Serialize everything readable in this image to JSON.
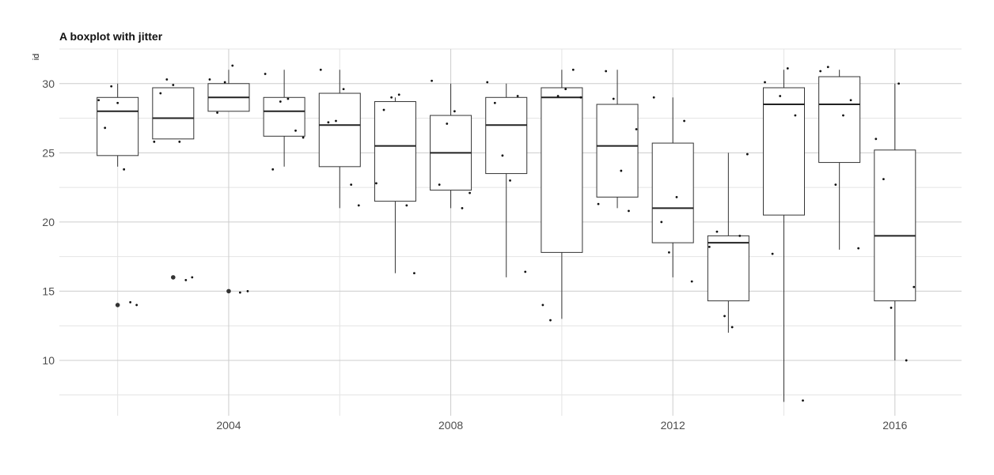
{
  "chart_data": {
    "type": "boxplot",
    "title": "A boxplot with jitter",
    "xlabel": "",
    "ylabel": "id",
    "x_ticks": [
      2004,
      2008,
      2012,
      2016
    ],
    "y_ticks": [
      10,
      15,
      20,
      25,
      30
    ],
    "xlim": [
      2000.95,
      2017.2
    ],
    "ylim": [
      6,
      32.5
    ],
    "grid": true,
    "legend": "none",
    "groups": [
      {
        "x": 2002,
        "min": 24,
        "q1": 24.8,
        "median": 28,
        "q3": 29,
        "max": 30,
        "outliers": [
          14
        ],
        "points": [
          28.8,
          26.8,
          29.8,
          28.6,
          23.8,
          14.2,
          14
        ]
      },
      {
        "x": 2003,
        "min": 26,
        "q1": 26,
        "median": 27.5,
        "q3": 29.7,
        "max": 29.7,
        "outliers": [
          16
        ],
        "points": [
          25.8,
          29.3,
          30.3,
          29.9,
          25.8,
          15.8,
          16
        ]
      },
      {
        "x": 2004,
        "min": 28,
        "q1": 28,
        "median": 29,
        "q3": 30,
        "max": 31,
        "outliers": [
          15
        ],
        "points": [
          30.3,
          27.9,
          30.1,
          31.3,
          14.9,
          15
        ]
      },
      {
        "x": 2005,
        "min": 24,
        "q1": 26.2,
        "median": 28,
        "q3": 29,
        "max": 31,
        "outliers": [],
        "points": [
          30.7,
          23.8,
          28.7,
          28.9,
          26.6,
          26.1
        ]
      },
      {
        "x": 2006,
        "min": 21,
        "q1": 24,
        "median": 27,
        "q3": 29.3,
        "max": 31,
        "outliers": [],
        "points": [
          31,
          27.2,
          27.3,
          29.6,
          22.7,
          21.2
        ]
      },
      {
        "x": 2007,
        "min": 16.3,
        "q1": 21.5,
        "median": 25.5,
        "q3": 28.7,
        "max": 29,
        "outliers": [],
        "points": [
          22.8,
          28.1,
          29,
          29.2,
          21.2,
          16.3
        ]
      },
      {
        "x": 2008,
        "min": 21,
        "q1": 22.3,
        "median": 25,
        "q3": 27.7,
        "max": 30,
        "outliers": [],
        "points": [
          30.2,
          22.7,
          27.1,
          28,
          21,
          22.1
        ]
      },
      {
        "x": 2009,
        "min": 16,
        "q1": 23.5,
        "median": 27,
        "q3": 29,
        "max": 30,
        "outliers": [],
        "points": [
          30.1,
          28.6,
          24.8,
          23,
          29.1,
          16.4
        ]
      },
      {
        "x": 2010,
        "min": 13,
        "q1": 17.8,
        "median": 29,
        "q3": 29.7,
        "max": 31,
        "outliers": [],
        "points": [
          14,
          12.9,
          29.1,
          29.6,
          31,
          29
        ]
      },
      {
        "x": 2011,
        "min": 21,
        "q1": 21.8,
        "median": 25.5,
        "q3": 28.5,
        "max": 31,
        "outliers": [],
        "points": [
          21.3,
          30.9,
          28.9,
          23.7,
          20.8,
          26.7
        ]
      },
      {
        "x": 2012,
        "min": 16,
        "q1": 18.5,
        "median": 21,
        "q3": 25.7,
        "max": 29,
        "outliers": [],
        "points": [
          29,
          20,
          17.8,
          21.8,
          27.3,
          15.7
        ]
      },
      {
        "x": 2013,
        "min": 12,
        "q1": 14.3,
        "median": 18.5,
        "q3": 19,
        "max": 25,
        "outliers": [],
        "points": [
          18.2,
          19.3,
          13.2,
          12.4,
          19,
          24.9
        ]
      },
      {
        "x": 2014,
        "min": 7,
        "q1": 20.5,
        "median": 28.5,
        "q3": 29.7,
        "max": 31,
        "outliers": [],
        "points": [
          30.1,
          17.7,
          29.1,
          31.1,
          27.7,
          7.1
        ]
      },
      {
        "x": 2015,
        "min": 18,
        "q1": 24.3,
        "median": 28.5,
        "q3": 30.5,
        "max": 31,
        "outliers": [],
        "points": [
          30.9,
          31.2,
          22.7,
          27.7,
          28.8,
          18.1
        ]
      },
      {
        "x": 2016,
        "min": 10,
        "q1": 14.3,
        "median": 19,
        "q3": 25.2,
        "max": 30,
        "outliers": [],
        "points": [
          26,
          23.1,
          13.8,
          30,
          10,
          15.3
        ]
      }
    ]
  }
}
